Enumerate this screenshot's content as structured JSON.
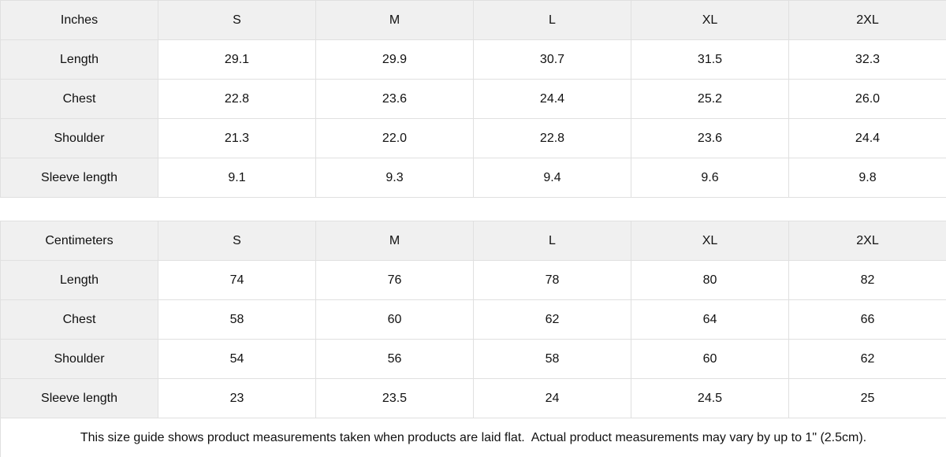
{
  "tables": [
    {
      "unit_label": "Inches",
      "sizes": [
        "S",
        "M",
        "L",
        "XL",
        "2XL"
      ],
      "rows": [
        {
          "label": "Length",
          "values": [
            "29.1",
            "29.9",
            "30.7",
            "31.5",
            "32.3"
          ]
        },
        {
          "label": "Chest",
          "values": [
            "22.8",
            "23.6",
            "24.4",
            "25.2",
            "26.0"
          ]
        },
        {
          "label": "Shoulder",
          "values": [
            "21.3",
            "22.0",
            "22.8",
            "23.6",
            "24.4"
          ]
        },
        {
          "label": "Sleeve length",
          "values": [
            "9.1",
            "9.3",
            "9.4",
            "9.6",
            "9.8"
          ]
        }
      ]
    },
    {
      "unit_label": "Centimeters",
      "sizes": [
        "S",
        "M",
        "L",
        "XL",
        "2XL"
      ],
      "rows": [
        {
          "label": "Length",
          "values": [
            "74",
            "76",
            "78",
            "80",
            "82"
          ]
        },
        {
          "label": "Chest",
          "values": [
            "58",
            "60",
            "62",
            "64",
            "66"
          ]
        },
        {
          "label": "Shoulder",
          "values": [
            "54",
            "56",
            "58",
            "60",
            "62"
          ]
        },
        {
          "label": "Sleeve length",
          "values": [
            "23",
            "23.5",
            "24",
            "24.5",
            "25"
          ]
        }
      ]
    }
  ],
  "footer": {
    "note": "This size guide shows product measurements taken when products are laid flat.  Actual product measurements may vary by up to 1\" (2.5cm)."
  },
  "colors": {
    "header_bg": "#f0f0f0",
    "border": "#e0e0e0",
    "text": "#111111",
    "cell_bg": "#ffffff"
  }
}
